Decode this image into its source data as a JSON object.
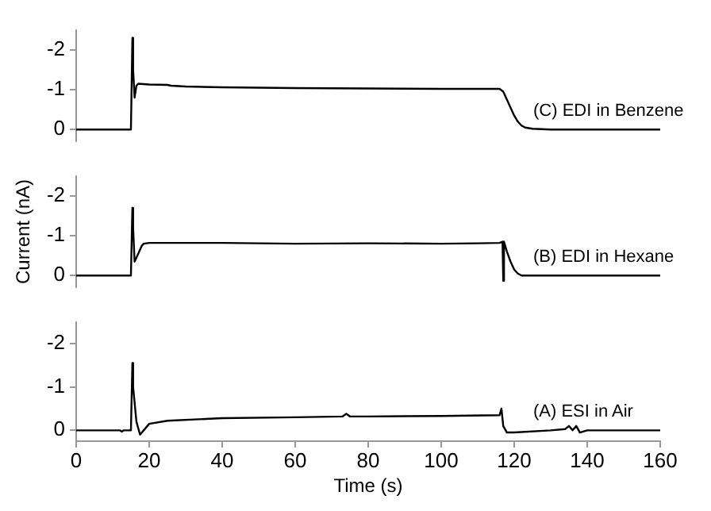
{
  "chart_data": [
    {
      "type": "line",
      "series": [
        {
          "name": "(C) EDI in Benzene",
          "color": "#000000",
          "x": [
            0,
            10,
            12,
            15,
            15.4,
            15.6,
            16,
            16.5,
            17,
            20,
            25,
            26,
            30,
            40,
            60,
            80,
            100,
            110,
            116,
            117,
            118,
            119,
            120,
            121,
            122,
            123,
            125,
            130,
            140,
            150,
            160
          ],
          "values": [
            0,
            0,
            0,
            0,
            -2.3,
            -1.5,
            -0.8,
            -1.1,
            -1.15,
            -1.13,
            -1.12,
            -1.1,
            -1.08,
            -1.06,
            -1.04,
            -1.03,
            -1.02,
            -1.02,
            -1.02,
            -0.95,
            -0.75,
            -0.55,
            -0.35,
            -0.2,
            -0.1,
            -0.05,
            -0.02,
            0,
            0,
            0,
            0
          ]
        }
      ],
      "xlim": [
        0,
        160
      ],
      "ylim": [
        0.3,
        -2.5
      ],
      "yticks": [
        0,
        -1,
        -2
      ],
      "tick_labels": "y",
      "marker": "none"
    },
    {
      "type": "line",
      "series": [
        {
          "name": "(B) EDI in Hexane",
          "color": "#000000",
          "x": [
            0,
            10,
            15,
            15.4,
            15.6,
            16,
            17,
            18,
            18.5,
            20,
            40,
            60,
            80,
            100,
            110,
            116,
            116.8,
            117,
            117.2,
            118,
            119,
            120,
            121,
            122,
            130,
            140,
            150,
            160
          ],
          "values": [
            0,
            0,
            0,
            -1.7,
            -1.2,
            -0.35,
            -0.55,
            -0.75,
            -0.8,
            -0.82,
            -0.82,
            -0.8,
            -0.81,
            -0.8,
            -0.81,
            -0.82,
            -0.85,
            0.13,
            -0.85,
            -0.6,
            -0.35,
            -0.15,
            -0.05,
            0,
            0,
            0,
            0,
            0
          ]
        }
      ],
      "xlim": [
        0,
        160
      ],
      "ylim": [
        0.3,
        -2.5
      ],
      "yticks": [
        0,
        -1,
        -2
      ],
      "ylabel": "Current (nA)",
      "tick_labels": "y",
      "marker": "none"
    },
    {
      "type": "line",
      "series": [
        {
          "name": "(A) ESI in Air",
          "color": "#000000",
          "x": [
            0,
            12,
            12.5,
            13,
            15,
            15.4,
            15.6,
            16.5,
            17.5,
            20,
            25,
            40,
            60,
            73,
            74,
            75,
            80,
            100,
            116,
            116.5,
            117,
            118,
            120,
            130,
            134,
            135,
            136,
            137,
            138,
            140,
            160
          ],
          "values": [
            0,
            0,
            0.03,
            0,
            0,
            -1.55,
            -1.0,
            -0.2,
            0.1,
            -0.15,
            -0.22,
            -0.28,
            -0.3,
            -0.32,
            -0.38,
            -0.32,
            -0.32,
            -0.33,
            -0.35,
            -0.5,
            -0.1,
            0.05,
            0.05,
            0,
            -0.03,
            -0.1,
            0,
            -0.1,
            0.05,
            0,
            0
          ]
        }
      ],
      "xlim": [
        0,
        160
      ],
      "ylim": [
        0.25,
        -2.5
      ],
      "yticks": [
        0,
        -1,
        -2
      ],
      "xticks": [
        0,
        20,
        40,
        60,
        80,
        100,
        120,
        140,
        160
      ],
      "xlabel": "Time (s)",
      "marker": "none"
    }
  ]
}
